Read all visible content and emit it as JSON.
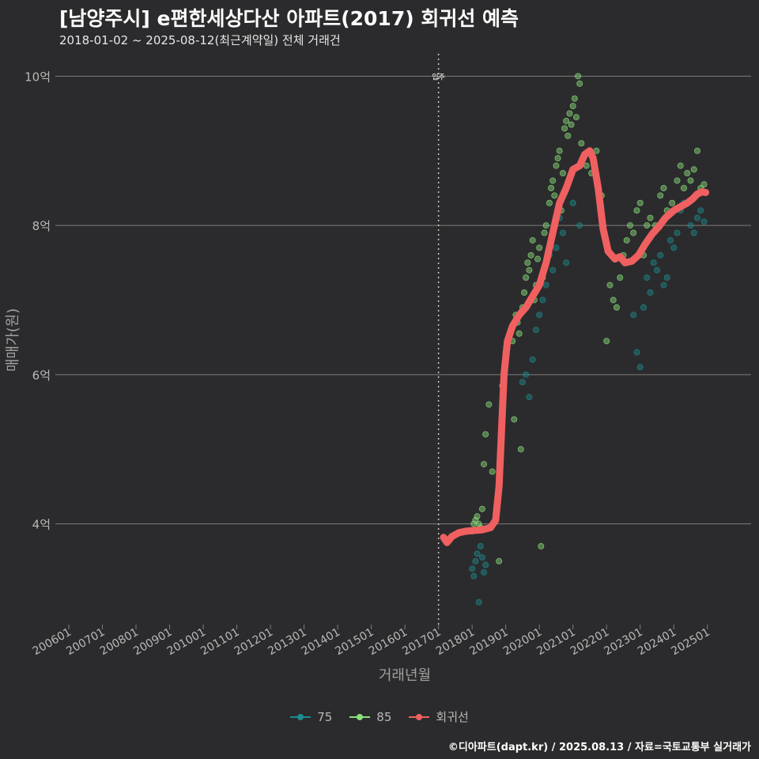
{
  "chart_data": {
    "type": "scatter",
    "title": "[남양주시] e편한세상다산 아파트(2017) 회귀선 예측",
    "subtitle": "2018-01-02 ~ 2025-08-12(최근계약일) 전체 거래건",
    "xlabel": "거래년월",
    "ylabel": "매매가(원)",
    "x_tick_labels": [
      "200601",
      "200701",
      "200801",
      "200901",
      "201001",
      "201101",
      "201201",
      "201301",
      "201401",
      "201501",
      "201601",
      "201701",
      "201801",
      "201901",
      "202001",
      "202101",
      "202201",
      "202301",
      "202401",
      "202501"
    ],
    "x_range": [
      2005.6,
      2026.3
    ],
    "y_tick_labels": [
      "4억",
      "6억",
      "8억",
      "10억"
    ],
    "y_tick_values": [
      4,
      6,
      8,
      10
    ],
    "y_range": [
      2.65,
      10.3
    ],
    "y_unit": "억",
    "vline": {
      "x": 2017.0,
      "label": "입주"
    },
    "legend_items": [
      {
        "label": "75",
        "color": "#1d8c8c"
      },
      {
        "label": "85",
        "color": "#8be07a"
      },
      {
        "label": "회귀선",
        "color": "#f06060"
      }
    ],
    "series": [
      {
        "name": "회귀선",
        "type": "line",
        "color": "#f06060",
        "points": [
          [
            2017.15,
            3.82
          ],
          [
            2017.25,
            3.75
          ],
          [
            2017.4,
            3.83
          ],
          [
            2017.6,
            3.88
          ],
          [
            2017.8,
            3.9
          ],
          [
            2018.0,
            3.91
          ],
          [
            2018.3,
            3.92
          ],
          [
            2018.55,
            3.95
          ],
          [
            2018.7,
            4.05
          ],
          [
            2018.8,
            4.5
          ],
          [
            2018.9,
            5.5
          ],
          [
            2018.95,
            6.0
          ],
          [
            2019.05,
            6.45
          ],
          [
            2019.2,
            6.65
          ],
          [
            2019.4,
            6.8
          ],
          [
            2019.6,
            6.9
          ],
          [
            2019.8,
            7.05
          ],
          [
            2020.0,
            7.2
          ],
          [
            2020.2,
            7.5
          ],
          [
            2020.4,
            7.9
          ],
          [
            2020.6,
            8.3
          ],
          [
            2020.8,
            8.5
          ],
          [
            2021.0,
            8.75
          ],
          [
            2021.2,
            8.8
          ],
          [
            2021.35,
            8.95
          ],
          [
            2021.5,
            9.0
          ],
          [
            2021.6,
            8.9
          ],
          [
            2021.75,
            8.5
          ],
          [
            2021.9,
            7.95
          ],
          [
            2022.05,
            7.65
          ],
          [
            2022.25,
            7.55
          ],
          [
            2022.4,
            7.58
          ],
          [
            2022.55,
            7.5
          ],
          [
            2022.75,
            7.52
          ],
          [
            2022.95,
            7.6
          ],
          [
            2023.15,
            7.75
          ],
          [
            2023.35,
            7.88
          ],
          [
            2023.55,
            7.98
          ],
          [
            2023.75,
            8.1
          ],
          [
            2024.0,
            8.2
          ],
          [
            2024.2,
            8.25
          ],
          [
            2024.4,
            8.3
          ],
          [
            2024.55,
            8.35
          ],
          [
            2024.7,
            8.42
          ],
          [
            2024.85,
            8.45
          ],
          [
            2024.95,
            8.44
          ]
        ]
      },
      {
        "name": "85",
        "type": "scatter",
        "color": "#8be07a",
        "points": [
          [
            2018.0,
            3.9
          ],
          [
            2018.05,
            4.0
          ],
          [
            2018.1,
            4.05
          ],
          [
            2018.15,
            4.1
          ],
          [
            2018.2,
            4.0
          ],
          [
            2018.25,
            3.95
          ],
          [
            2018.3,
            4.2
          ],
          [
            2018.35,
            4.8
          ],
          [
            2018.4,
            5.2
          ],
          [
            2018.5,
            5.6
          ],
          [
            2018.6,
            4.7
          ],
          [
            2018.8,
            3.5
          ],
          [
            2018.9,
            5.85
          ],
          [
            2019.0,
            6.3
          ],
          [
            2019.05,
            6.4
          ],
          [
            2019.1,
            6.5
          ],
          [
            2019.15,
            6.6
          ],
          [
            2019.2,
            6.45
          ],
          [
            2019.25,
            5.4
          ],
          [
            2019.3,
            6.8
          ],
          [
            2019.35,
            6.7
          ],
          [
            2019.4,
            6.55
          ],
          [
            2019.45,
            5.0
          ],
          [
            2019.5,
            6.9
          ],
          [
            2019.55,
            7.1
          ],
          [
            2019.6,
            7.3
          ],
          [
            2019.65,
            7.5
          ],
          [
            2019.7,
            7.4
          ],
          [
            2019.75,
            7.6
          ],
          [
            2019.8,
            7.8
          ],
          [
            2019.85,
            7.0
          ],
          [
            2019.9,
            7.2
          ],
          [
            2019.95,
            7.55
          ],
          [
            2020.0,
            7.7
          ],
          [
            2020.05,
            3.7
          ],
          [
            2020.1,
            7.3
          ],
          [
            2020.15,
            7.9
          ],
          [
            2020.2,
            8.0
          ],
          [
            2020.3,
            8.3
          ],
          [
            2020.35,
            8.5
          ],
          [
            2020.4,
            8.6
          ],
          [
            2020.45,
            8.4
          ],
          [
            2020.5,
            8.8
          ],
          [
            2020.55,
            8.9
          ],
          [
            2020.6,
            9.0
          ],
          [
            2020.65,
            8.2
          ],
          [
            2020.7,
            8.7
          ],
          [
            2020.75,
            9.3
          ],
          [
            2020.8,
            9.4
          ],
          [
            2020.85,
            9.2
          ],
          [
            2020.9,
            9.5
          ],
          [
            2020.95,
            9.35
          ],
          [
            2021.0,
            9.6
          ],
          [
            2021.05,
            9.7
          ],
          [
            2021.1,
            9.45
          ],
          [
            2021.15,
            10.0
          ],
          [
            2021.2,
            9.9
          ],
          [
            2021.25,
            9.1
          ],
          [
            2021.3,
            8.9
          ],
          [
            2021.4,
            8.8
          ],
          [
            2021.55,
            8.7
          ],
          [
            2021.7,
            9.0
          ],
          [
            2021.85,
            8.4
          ],
          [
            2022.0,
            6.45
          ],
          [
            2022.1,
            7.2
          ],
          [
            2022.2,
            7.0
          ],
          [
            2022.3,
            6.9
          ],
          [
            2022.4,
            7.3
          ],
          [
            2022.5,
            7.6
          ],
          [
            2022.6,
            7.8
          ],
          [
            2022.7,
            8.0
          ],
          [
            2022.8,
            7.9
          ],
          [
            2022.9,
            8.2
          ],
          [
            2023.0,
            8.3
          ],
          [
            2023.1,
            7.6
          ],
          [
            2023.2,
            8.0
          ],
          [
            2023.3,
            8.1
          ],
          [
            2023.45,
            8.0
          ],
          [
            2023.6,
            8.4
          ],
          [
            2023.7,
            8.5
          ],
          [
            2023.8,
            8.2
          ],
          [
            2023.95,
            8.3
          ],
          [
            2024.1,
            8.6
          ],
          [
            2024.2,
            8.8
          ],
          [
            2024.3,
            8.5
          ],
          [
            2024.4,
            8.7
          ],
          [
            2024.5,
            8.6
          ],
          [
            2024.6,
            8.75
          ],
          [
            2024.7,
            9.0
          ],
          [
            2024.8,
            8.5
          ],
          [
            2024.9,
            8.55
          ]
        ]
      },
      {
        "name": "75",
        "type": "scatter",
        "color": "#1d8c8c",
        "points": [
          [
            2018.0,
            3.4
          ],
          [
            2018.05,
            3.3
          ],
          [
            2018.1,
            3.5
          ],
          [
            2018.15,
            3.6
          ],
          [
            2018.2,
            2.95
          ],
          [
            2018.25,
            3.7
          ],
          [
            2018.3,
            3.55
          ],
          [
            2018.35,
            3.35
          ],
          [
            2018.4,
            3.45
          ],
          [
            2019.5,
            5.9
          ],
          [
            2019.6,
            6.0
          ],
          [
            2019.7,
            5.7
          ],
          [
            2019.8,
            6.2
          ],
          [
            2019.9,
            6.6
          ],
          [
            2020.0,
            6.8
          ],
          [
            2020.1,
            7.0
          ],
          [
            2020.2,
            7.2
          ],
          [
            2020.3,
            7.6
          ],
          [
            2020.4,
            7.4
          ],
          [
            2020.5,
            7.7
          ],
          [
            2020.6,
            8.1
          ],
          [
            2020.7,
            7.9
          ],
          [
            2020.8,
            7.5
          ],
          [
            2021.0,
            8.3
          ],
          [
            2021.2,
            8.0
          ],
          [
            2022.8,
            6.8
          ],
          [
            2022.9,
            6.3
          ],
          [
            2023.0,
            6.1
          ],
          [
            2023.1,
            6.9
          ],
          [
            2023.2,
            7.3
          ],
          [
            2023.3,
            7.1
          ],
          [
            2023.4,
            7.5
          ],
          [
            2023.5,
            7.4
          ],
          [
            2023.6,
            7.6
          ],
          [
            2023.7,
            7.2
          ],
          [
            2023.8,
            7.3
          ],
          [
            2023.9,
            7.8
          ],
          [
            2024.0,
            7.7
          ],
          [
            2024.1,
            7.9
          ],
          [
            2024.2,
            8.2
          ],
          [
            2024.3,
            8.3
          ],
          [
            2024.5,
            8.0
          ],
          [
            2024.6,
            7.9
          ],
          [
            2024.7,
            8.1
          ],
          [
            2024.8,
            8.2
          ],
          [
            2024.9,
            8.05
          ]
        ]
      }
    ]
  },
  "caption": "©디아파트(dapt.kr) / 2025.08.13 / 자료=국토교통부 실거래가"
}
